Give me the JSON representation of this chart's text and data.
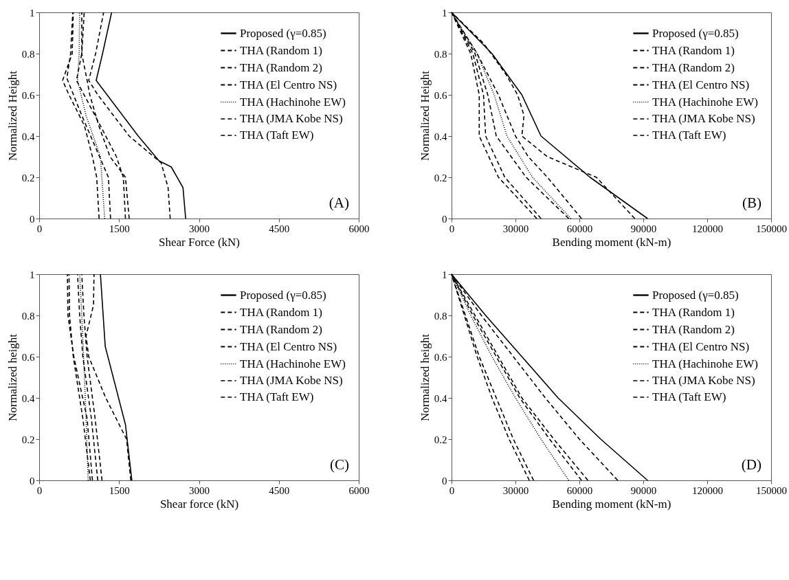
{
  "chart_data": [
    {
      "type": "line",
      "xlabel": "Shear Force (kN)",
      "ylabel": "Normalized Height",
      "annotations": [
        "(A)"
      ],
      "xlim": [
        0,
        6000
      ],
      "xticks": [
        0,
        1500,
        3000,
        4500,
        6000
      ],
      "ylim": [
        0,
        1
      ],
      "yticks": [
        0,
        0.2,
        0.4,
        0.6,
        0.8,
        1
      ],
      "grid": false,
      "legend": "top right",
      "series": [
        {
          "name": "Proposed (γ=0.85)",
          "color": "#000000",
          "line_style": "solid",
          "x": [
            2750,
            2700,
            2480,
            2250,
            1860,
            1070,
            1190,
            1360
          ],
          "values": [
            0,
            0.15,
            0.25,
            0.28,
            0.4,
            0.67,
            0.8,
            1
          ]
        },
        {
          "name": "THA (Random 1)",
          "color": "#000000",
          "line_style": "dashed",
          "x": [
            2460,
            2420,
            2290,
            1690,
            1100,
            930,
            1060,
            1210
          ],
          "values": [
            0,
            0.15,
            0.27,
            0.4,
            0.6,
            0.67,
            0.8,
            1
          ]
        },
        {
          "name": "THA (Random 2)",
          "color": "#000000",
          "line_style": "dashed",
          "x": [
            1620,
            1580,
            1450,
            1150,
            700,
            800,
            845
          ],
          "values": [
            0,
            0.2,
            0.3,
            0.45,
            0.67,
            0.8,
            1
          ]
        },
        {
          "name": "THA (El Centro NS)",
          "color": "#000000",
          "line_style": "dashed",
          "x": [
            1125,
            1080,
            1000,
            850,
            560,
            440,
            620,
            640
          ],
          "values": [
            0,
            0.2,
            0.3,
            0.45,
            0.6,
            0.67,
            0.8,
            1
          ]
        },
        {
          "name": "THA (Hachinohe EW)",
          "color": "#000000",
          "line_style": "dotted",
          "x": [
            1230,
            1150,
            880,
            720,
            750,
            760
          ],
          "values": [
            0,
            0.3,
            0.5,
            0.67,
            0.8,
            1
          ]
        },
        {
          "name": "THA (JMA Kobe NS)",
          "color": "#000000",
          "line_style": "dashed",
          "x": [
            1340,
            1300,
            1050,
            800,
            520,
            590,
            630
          ],
          "values": [
            0,
            0.2,
            0.35,
            0.5,
            0.68,
            0.8,
            1
          ]
        },
        {
          "name": "THA (Taft EW)",
          "color": "#000000",
          "line_style": "dashed",
          "x": [
            1690,
            1620,
            1330,
            1120,
            950,
            900,
            800,
            800
          ],
          "values": [
            0,
            0.2,
            0.3,
            0.45,
            0.6,
            0.67,
            0.8,
            1
          ]
        }
      ]
    },
    {
      "type": "line",
      "xlabel": "Bending moment (kN-m)",
      "ylabel": "Normalized Height",
      "annotations": [
        "(B)"
      ],
      "xlim": [
        0,
        150000
      ],
      "xticks": [
        0,
        30000,
        60000,
        90000,
        120000,
        150000
      ],
      "ylim": [
        0,
        1
      ],
      "yticks": [
        0,
        0.2,
        0.4,
        0.6,
        0.8,
        1
      ],
      "grid": false,
      "legend": "top right",
      "series": [
        {
          "name": "Proposed (γ=0.85)",
          "color": "#000000",
          "line_style": "solid",
          "x": [
            92000,
            65000,
            42000,
            33000,
            19000,
            0
          ],
          "values": [
            0,
            0.2,
            0.4,
            0.6,
            0.8,
            1
          ]
        },
        {
          "name": "THA (Random 1)",
          "color": "#000000",
          "line_style": "dashed",
          "x": [
            86000,
            68000,
            45000,
            33000,
            34000,
            31000,
            25500,
            15000,
            0
          ],
          "values": [
            0,
            0.2,
            0.3,
            0.4,
            0.5,
            0.6,
            0.7,
            0.85,
            1
          ]
        },
        {
          "name": "THA (Random 2)",
          "color": "#000000",
          "line_style": "dashed",
          "x": [
            55000,
            35000,
            21000,
            17000,
            11000,
            0
          ],
          "values": [
            0,
            0.2,
            0.4,
            0.6,
            0.8,
            1
          ]
        },
        {
          "name": "THA (El Centro NS)",
          "color": "#000000",
          "line_style": "dashed",
          "x": [
            42000,
            25000,
            16000,
            15000,
            10000,
            0
          ],
          "values": [
            0,
            0.2,
            0.4,
            0.6,
            0.8,
            1
          ]
        },
        {
          "name": "THA (Hachinohe EW)",
          "color": "#000000",
          "line_style": "dotted",
          "x": [
            56000,
            38000,
            26000,
            20000,
            12000,
            0
          ],
          "values": [
            0,
            0.2,
            0.4,
            0.6,
            0.8,
            1
          ]
        },
        {
          "name": "THA (JMA Kobe NS)",
          "color": "#000000",
          "line_style": "dashed",
          "x": [
            40000,
            22000,
            13000,
            13000,
            9000,
            0
          ],
          "values": [
            0,
            0.2,
            0.4,
            0.6,
            0.8,
            1
          ]
        },
        {
          "name": "THA (Taft EW)",
          "color": "#000000",
          "line_style": "dashed",
          "x": [
            61000,
            45000,
            36000,
            30000,
            22000,
            12000,
            0
          ],
          "values": [
            0,
            0.2,
            0.3,
            0.4,
            0.6,
            0.8,
            1
          ]
        }
      ]
    },
    {
      "type": "line",
      "xlabel": "Shear force (kN)",
      "ylabel": "Normalized height",
      "annotations": [
        "(C)"
      ],
      "xlim": [
        0,
        6000
      ],
      "xticks": [
        0,
        1500,
        3000,
        4500,
        6000
      ],
      "ylim": [
        0,
        1
      ],
      "yticks": [
        0,
        0.2,
        0.4,
        0.6,
        0.8,
        1
      ],
      "grid": false,
      "legend": "top right",
      "series": [
        {
          "name": "Proposed (γ=0.85)",
          "color": "#000000",
          "line_style": "solid",
          "x": [
            1740,
            1620,
            1240,
            1150
          ],
          "values": [
            0,
            0.27,
            0.65,
            1
          ]
        },
        {
          "name": "THA (Random 1)",
          "color": "#000000",
          "line_style": "dashed",
          "x": [
            1720,
            1640,
            1250,
            930,
            880,
            1020,
            1030
          ],
          "values": [
            0,
            0.2,
            0.4,
            0.6,
            0.7,
            0.85,
            1
          ]
        },
        {
          "name": "THA (Random 2)",
          "color": "#000000",
          "line_style": "dashed",
          "x": [
            1100,
            980,
            820,
            760,
            720
          ],
          "values": [
            0,
            0.3,
            0.6,
            0.8,
            1
          ]
        },
        {
          "name": "THA (El Centro NS)",
          "color": "#000000",
          "line_style": "dashed",
          "x": [
            960,
            820,
            640,
            570,
            560
          ],
          "values": [
            0,
            0.3,
            0.6,
            0.8,
            1
          ]
        },
        {
          "name": "THA (Hachinohe EW)",
          "color": "#000000",
          "line_style": "dotted",
          "x": [
            920,
            880,
            850,
            800,
            760
          ],
          "values": [
            0,
            0.3,
            0.5,
            0.8,
            1
          ]
        },
        {
          "name": "THA (JMA Kobe NS)",
          "color": "#000000",
          "line_style": "dashed",
          "x": [
            1000,
            900,
            650,
            540,
            530
          ],
          "values": [
            0,
            0.3,
            0.6,
            0.8,
            1
          ]
        },
        {
          "name": "THA (Taft EW)",
          "color": "#000000",
          "line_style": "dashed",
          "x": [
            1180,
            1050,
            900,
            840,
            800
          ],
          "values": [
            0,
            0.3,
            0.6,
            0.8,
            1
          ]
        }
      ]
    },
    {
      "type": "line",
      "xlabel": "Bending moment (kN-m)",
      "ylabel": "Normalized height",
      "annotations": [
        "(D)"
      ],
      "xlim": [
        0,
        150000
      ],
      "xticks": [
        0,
        30000,
        60000,
        90000,
        120000,
        150000
      ],
      "ylim": [
        0,
        1
      ],
      "yticks": [
        0,
        0.2,
        0.4,
        0.6,
        0.8,
        1
      ],
      "grid": false,
      "legend": "top right",
      "series": [
        {
          "name": "Proposed (γ=0.85)",
          "color": "#000000",
          "line_style": "solid",
          "x": [
            92000,
            70000,
            50000,
            33000,
            16000,
            0
          ],
          "values": [
            0,
            0.2,
            0.4,
            0.6,
            0.8,
            1
          ]
        },
        {
          "name": "THA (Random 1)",
          "color": "#000000",
          "line_style": "dashed",
          "x": [
            64000,
            48000,
            33000,
            22000,
            11000,
            0
          ],
          "values": [
            0,
            0.2,
            0.4,
            0.6,
            0.8,
            1
          ]
        },
        {
          "name": "THA (Random 2)",
          "color": "#000000",
          "line_style": "dashed",
          "x": [
            78000,
            60000,
            44000,
            29000,
            14000,
            0
          ],
          "values": [
            0,
            0.2,
            0.4,
            0.6,
            0.8,
            1
          ]
        },
        {
          "name": "THA (El Centro NS)",
          "color": "#000000",
          "line_style": "dashed",
          "x": [
            38500,
            29000,
            21000,
            13000,
            6500,
            0
          ],
          "values": [
            0,
            0.2,
            0.4,
            0.6,
            0.8,
            1
          ]
        },
        {
          "name": "THA (Hachinohe EW)",
          "color": "#000000",
          "line_style": "dotted",
          "x": [
            55000,
            42000,
            30000,
            19000,
            9000,
            0
          ],
          "values": [
            0,
            0.2,
            0.4,
            0.6,
            0.8,
            1
          ]
        },
        {
          "name": "THA (JMA Kobe NS)",
          "color": "#000000",
          "line_style": "dashed",
          "x": [
            36500,
            27000,
            19000,
            12000,
            6000,
            0
          ],
          "values": [
            0,
            0.2,
            0.4,
            0.6,
            0.8,
            1
          ]
        },
        {
          "name": "THA (Taft EW)",
          "color": "#000000",
          "line_style": "dashed",
          "x": [
            61000,
            46000,
            32000,
            21000,
            10000,
            0
          ],
          "values": [
            0,
            0.2,
            0.4,
            0.6,
            0.8,
            1
          ]
        }
      ]
    }
  ]
}
